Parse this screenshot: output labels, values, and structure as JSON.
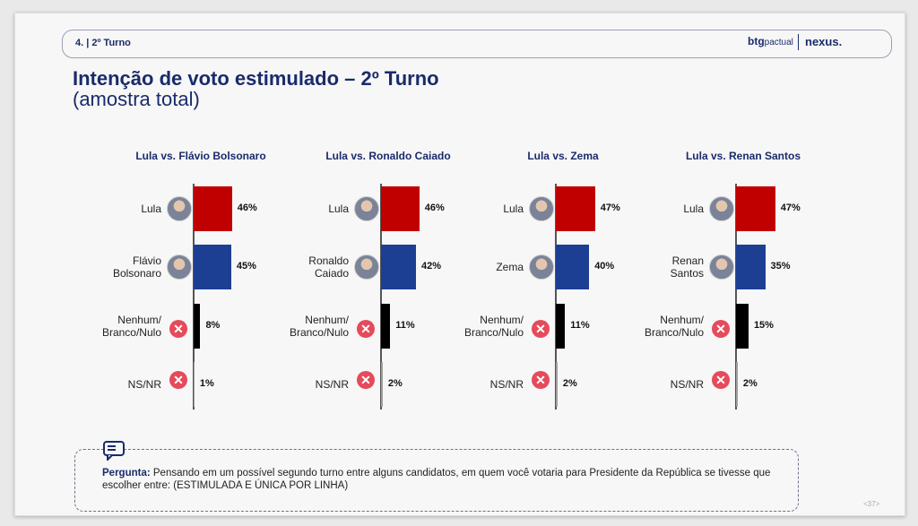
{
  "header": {
    "section": "4. | 2º Turno",
    "brand_left": "btg",
    "brand_left_suffix": "pactual",
    "brand_right": "nexus."
  },
  "title": "Intenção de voto estimulado – 2º Turno",
  "subtitle": "(amostra total)",
  "chart_data": [
    {
      "type": "bar",
      "title": "Lula vs. Flávio Bolsonaro",
      "categories": [
        "Lula",
        "Flávio Bolsonaro",
        "Nenhum/ Branco/Nulo",
        "NS/NR"
      ],
      "values": [
        46,
        45,
        8,
        1
      ],
      "value_labels": [
        "46%",
        "45%",
        "8%",
        "1%"
      ],
      "colors": [
        "#c00000",
        "#1c3f94",
        "#000000",
        "#9e9e9e"
      ]
    },
    {
      "type": "bar",
      "title": "Lula vs. Ronaldo Caiado",
      "categories": [
        "Lula",
        "Ronaldo Caiado",
        "Nenhum/ Branco/Nulo",
        "NS/NR"
      ],
      "values": [
        46,
        42,
        11,
        2
      ],
      "value_labels": [
        "46%",
        "42%",
        "11%",
        "2%"
      ],
      "colors": [
        "#c00000",
        "#1c3f94",
        "#000000",
        "#9e9e9e"
      ]
    },
    {
      "type": "bar",
      "title": "Lula vs. Zema",
      "categories": [
        "Lula",
        "Zema",
        "Nenhum/ Branco/Nulo",
        "NS/NR"
      ],
      "values": [
        47,
        40,
        11,
        2
      ],
      "value_labels": [
        "47%",
        "40%",
        "11%",
        "2%"
      ],
      "colors": [
        "#c00000",
        "#1c3f94",
        "#000000",
        "#9e9e9e"
      ]
    },
    {
      "type": "bar",
      "title": "Lula vs. Renan Santos",
      "categories": [
        "Lula",
        "Renan Santos",
        "Nenhum/ Branco/Nulo",
        "NS/NR"
      ],
      "values": [
        47,
        35,
        15,
        2
      ],
      "value_labels": [
        "47%",
        "35%",
        "15%",
        "2%"
      ],
      "colors": [
        "#c00000",
        "#1c3f94",
        "#000000",
        "#9e9e9e"
      ]
    }
  ],
  "question": {
    "label": "Pergunta:",
    "text": "Pensando em um possível segundo turno entre alguns candidatos, em quem você votaria para Presidente da República se tivesse que escolher entre: (ESTIMULADA E ÚNICA POR LINHA)"
  },
  "page_number": "<37>"
}
